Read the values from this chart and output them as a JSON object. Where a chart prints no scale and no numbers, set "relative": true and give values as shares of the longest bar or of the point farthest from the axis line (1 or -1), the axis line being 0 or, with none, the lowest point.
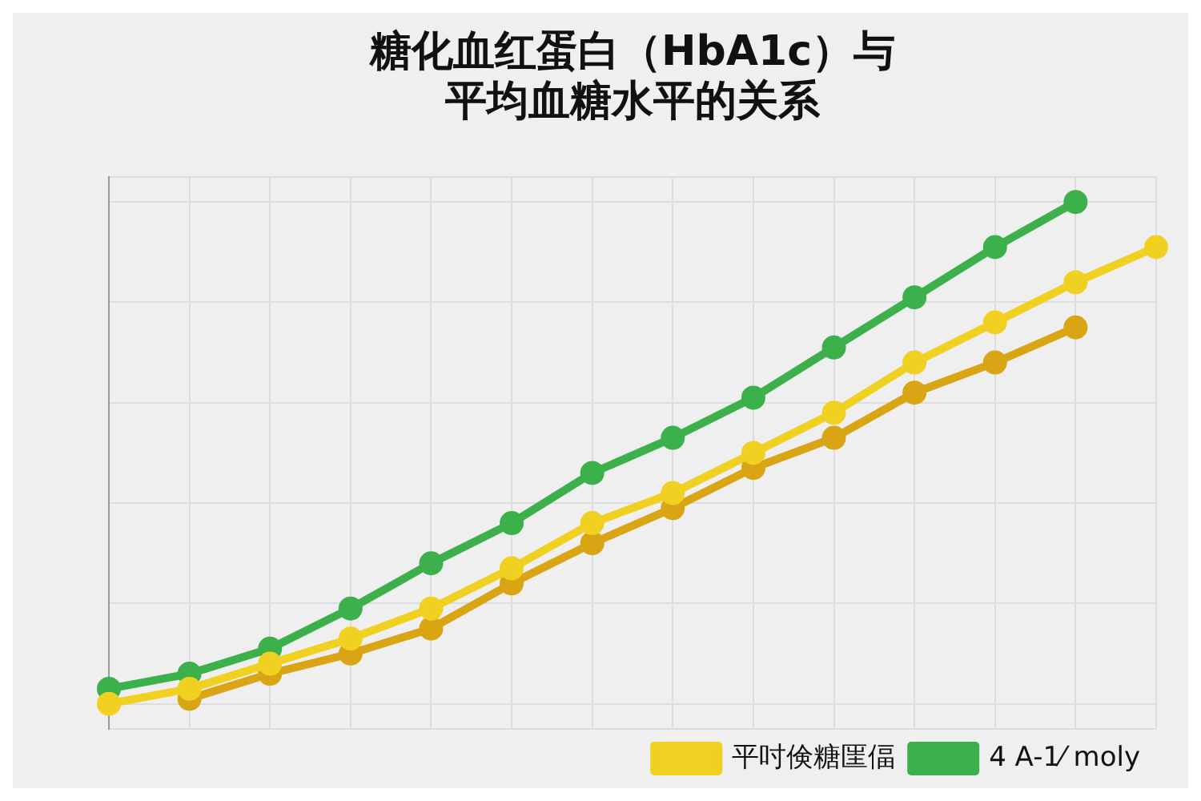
{
  "chart_data": {
    "type": "line",
    "title": "糖化血红蛋白（HbA1c）与平均血糖水平的关系",
    "relative": true,
    "categories": [
      null,
      null,
      null,
      null,
      null,
      null,
      null,
      null,
      null,
      null,
      null,
      null,
      null,
      null
    ],
    "series": [
      {
        "name": "平吋倹糖匩偪",
        "color": "#f0d020",
        "values": [
          0,
          0.03,
          0.08,
          0.13,
          0.19,
          0.27,
          0.36,
          0.42,
          0.5,
          0.58,
          0.68,
          0.76,
          0.84,
          0.91
        ]
      },
      {
        "name": "4 A-1⁄ moly",
        "color": "#3cb04a",
        "values": [
          0.03,
          0.06,
          0.11,
          0.19,
          0.28,
          0.36,
          0.46,
          0.53,
          0.61,
          0.71,
          0.81,
          0.91,
          1,
          null
        ]
      },
      {
        "color": "#d9a514",
        "values": [
          null,
          0.01,
          0.06,
          0.1,
          0.15,
          0.24,
          0.32,
          0.39,
          0.47,
          0.53,
          0.62,
          0.68,
          0.75,
          null
        ]
      }
    ],
    "grid": true,
    "legend": "bottom right",
    "marker": "circle",
    "line_style": "solid"
  }
}
